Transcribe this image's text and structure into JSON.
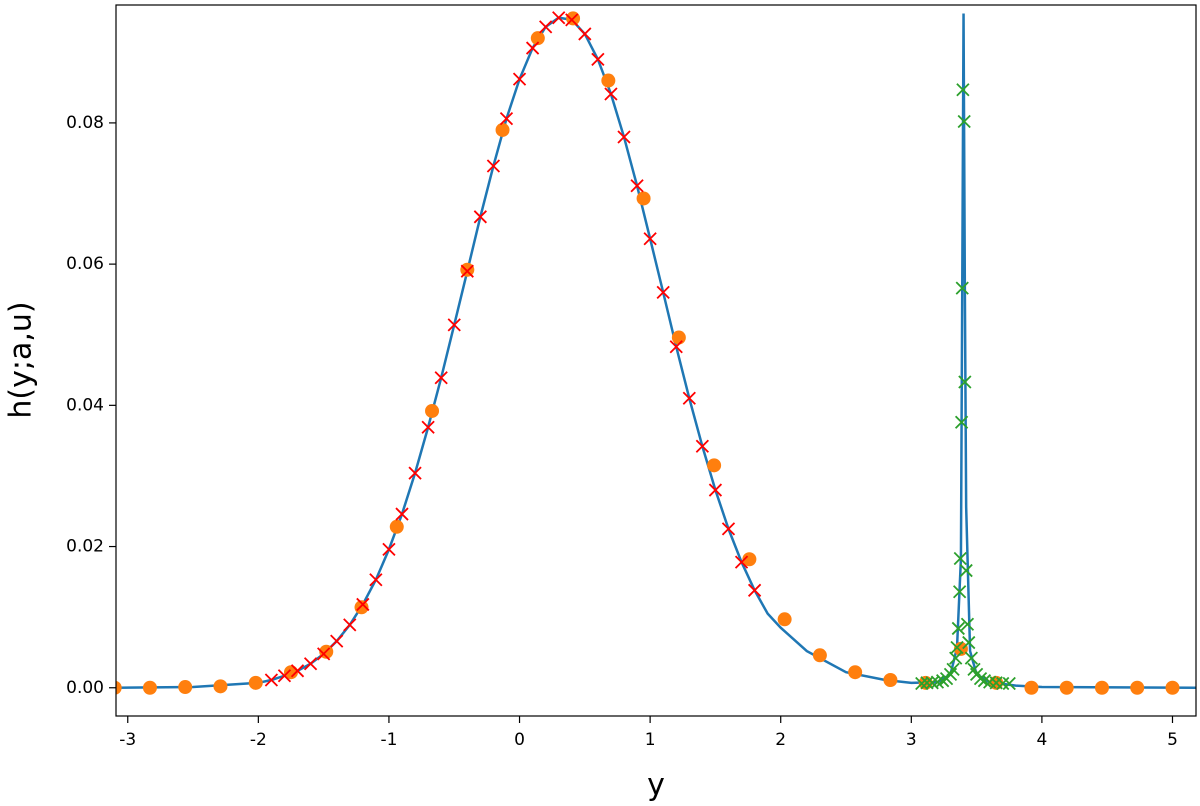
{
  "chart_data": {
    "type": "line",
    "xlabel": "y",
    "ylabel": "h(y;a,u)",
    "xlim": [
      -3.09,
      5.18
    ],
    "ylim": [
      -0.004,
      0.0967
    ],
    "xticks": [
      -3,
      -2,
      -1,
      0,
      1,
      2,
      3,
      4,
      5
    ],
    "yticks": [
      {
        "value": 0,
        "label": "0.00"
      },
      {
        "value": 0.02,
        "label": "0.02"
      },
      {
        "value": 0.04,
        "label": "0.04"
      },
      {
        "value": 0.06,
        "label": "0.06"
      },
      {
        "value": 0.08,
        "label": "0.08"
      }
    ],
    "series": [
      {
        "marker": "line",
        "color": "#1f77b4",
        "x": [
          -3.1,
          -2.5,
          -2.0,
          -1.9,
          -1.8,
          -1.7,
          -1.6,
          -1.5,
          -1.4,
          -1.3,
          -1.2,
          -1.1,
          -1.0,
          -0.9,
          -0.8,
          -0.7,
          -0.6,
          -0.5,
          -0.4,
          -0.3,
          -0.2,
          -0.1,
          0,
          0.1,
          0.2,
          0.3,
          0.4,
          0.5,
          0.6,
          0.7,
          0.8,
          0.9,
          1.0,
          1.1,
          1.2,
          1.3,
          1.4,
          1.5,
          1.6,
          1.7,
          1.8,
          1.9,
          2.0,
          2.2,
          2.5,
          2.8,
          3.0,
          3.2,
          3.3,
          3.35,
          3.38,
          3.39,
          3.4,
          3.41,
          3.42,
          3.45,
          3.5,
          3.6,
          3.8,
          4.0,
          5.18
        ],
        "values": [
          0,
          0.0001,
          0.0007,
          0.0011,
          0.0017,
          0.0024,
          0.0034,
          0.0048,
          0.0066,
          0.0089,
          0.0118,
          0.0153,
          0.0196,
          0.0246,
          0.0304,
          0.0369,
          0.0439,
          0.0514,
          0.059,
          0.0667,
          0.0739,
          0.0806,
          0.0862,
          0.0906,
          0.0936,
          0.0949,
          0.0946,
          0.0926,
          0.089,
          0.0841,
          0.078,
          0.0711,
          0.0636,
          0.056,
          0.0483,
          0.041,
          0.0342,
          0.028,
          0.0225,
          0.0178,
          0.0138,
          0.0105,
          0.0085,
          0.0052,
          0.0022,
          0.0011,
          0.0007,
          0.0008,
          0.0019,
          0.0057,
          0.0183,
          0.0566,
          0.0955,
          0.0566,
          0.0256,
          0.0052,
          0.0019,
          0.0008,
          0.0003,
          0.0001,
          0
        ]
      },
      {
        "marker": "circle",
        "color": "#ff7f0e",
        "x": [
          -3.1,
          -2.83,
          -2.56,
          -2.29,
          -2.02,
          -1.75,
          -1.48,
          -1.21,
          -0.94,
          -0.67,
          -0.4,
          -0.13,
          0.14,
          0.41,
          0.68,
          0.95,
          1.22,
          1.49,
          1.76,
          2.03,
          2.3,
          2.57,
          2.84,
          3.11,
          3.38,
          3.65,
          3.92,
          4.19,
          4.46,
          4.73,
          5.0
        ],
        "values": [
          0,
          0,
          0.0001,
          0.0002,
          0.0007,
          0.0022,
          0.0051,
          0.0114,
          0.0228,
          0.0392,
          0.0592,
          0.079,
          0.092,
          0.0948,
          0.086,
          0.0693,
          0.0496,
          0.0315,
          0.0182,
          0.0097,
          0.0046,
          0.0022,
          0.0011,
          0.0007,
          0.0055,
          0.0007,
          0,
          0,
          0,
          0,
          0
        ]
      },
      {
        "marker": "x",
        "color": "#ff0000",
        "x": [
          -1.9,
          -1.8,
          -1.7,
          -1.6,
          -1.5,
          -1.4,
          -1.3,
          -1.2,
          -1.1,
          -1.0,
          -0.9,
          -0.8,
          -0.7,
          -0.6,
          -0.5,
          -0.4,
          -0.3,
          -0.2,
          -0.1,
          0,
          0.1,
          0.2,
          0.3,
          0.4,
          0.5,
          0.6,
          0.7,
          0.8,
          0.9,
          1.0,
          1.1,
          1.2,
          1.3,
          1.4,
          1.5,
          1.6,
          1.7,
          1.8
        ],
        "values": [
          0.0011,
          0.0017,
          0.0024,
          0.0034,
          0.0048,
          0.0066,
          0.0089,
          0.0118,
          0.0153,
          0.0196,
          0.0246,
          0.0304,
          0.0369,
          0.0439,
          0.0514,
          0.059,
          0.0667,
          0.0739,
          0.0806,
          0.0862,
          0.0906,
          0.0936,
          0.0949,
          0.0946,
          0.0926,
          0.089,
          0.0841,
          0.078,
          0.0711,
          0.0636,
          0.056,
          0.0483,
          0.041,
          0.0342,
          0.028,
          0.0225,
          0.0178,
          0.0138
        ]
      },
      {
        "marker": "x",
        "color": "#2ca02c",
        "x": [
          3.08,
          3.12,
          3.16,
          3.2,
          3.24,
          3.27,
          3.3,
          3.32,
          3.34,
          3.35,
          3.36,
          3.37,
          3.375,
          3.385,
          3.39,
          3.395,
          3.405,
          3.41,
          3.42,
          3.43,
          3.44,
          3.46,
          3.48,
          3.5,
          3.53,
          3.56,
          3.6,
          3.65,
          3.7,
          3.75
        ],
        "values": [
          0.0006,
          0.0007,
          0.0007,
          0.0008,
          0.001,
          0.0013,
          0.0019,
          0.0026,
          0.0042,
          0.0057,
          0.0084,
          0.0136,
          0.0183,
          0.0376,
          0.0566,
          0.0847,
          0.0802,
          0.0433,
          0.0166,
          0.009,
          0.0064,
          0.0042,
          0.0026,
          0.0019,
          0.0013,
          0.001,
          0.0008,
          0.0007,
          0.0006,
          0.0006
        ]
      }
    ]
  }
}
